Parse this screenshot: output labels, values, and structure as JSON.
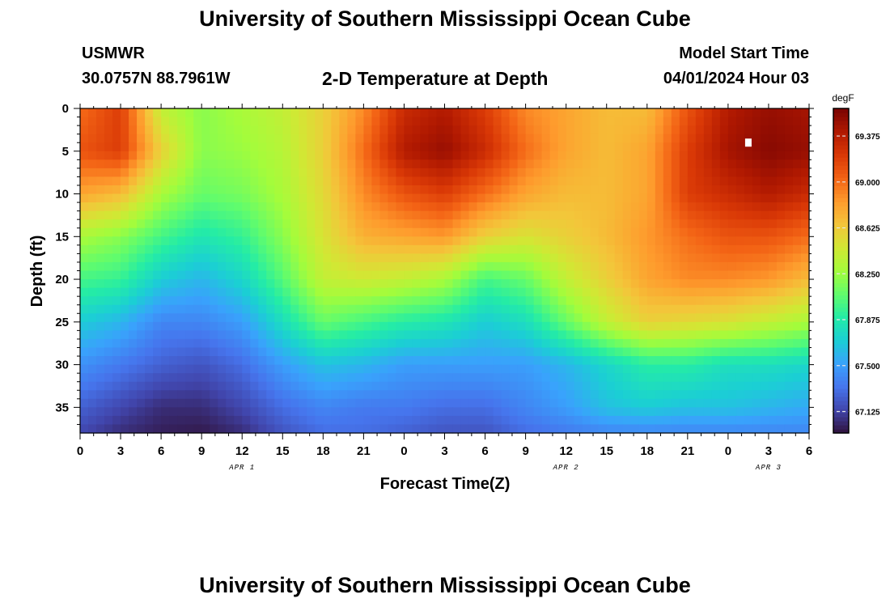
{
  "header": {
    "title": "University of Southern Mississippi Ocean Cube",
    "station": "USMWR",
    "coordinates": "30.0757N  88.7961W",
    "subtitle": "2-D Temperature at Depth",
    "model_start_label": "Model Start Time",
    "model_start_value": "04/01/2024 Hour 03"
  },
  "footer": {
    "title": "University of Southern Mississippi Ocean Cube"
  },
  "chart_data": {
    "type": "heatmap",
    "title": "2-D Temperature at Depth",
    "xlabel": "Forecast Time(Z)",
    "ylabel": "Depth (ft)",
    "xlim": [
      0,
      54
    ],
    "ylim": [
      38,
      0
    ],
    "x_ticks": [
      0,
      3,
      6,
      9,
      12,
      15,
      18,
      21,
      24,
      27,
      30,
      33,
      36,
      39,
      42,
      45,
      48,
      51,
      54
    ],
    "x_tick_labels": [
      "0",
      "3",
      "6",
      "9",
      "12",
      "15",
      "18",
      "21",
      "0",
      "3",
      "6",
      "9",
      "12",
      "15",
      "18",
      "21",
      "0",
      "3",
      "6"
    ],
    "date_labels": [
      {
        "text": "APR 1",
        "x": 12
      },
      {
        "text": "APR 2",
        "x": 36
      },
      {
        "text": "APR 3",
        "x": 51
      }
    ],
    "y_ticks": [
      0,
      5,
      10,
      15,
      20,
      25,
      30,
      35
    ],
    "colorbar": {
      "unit": "degF",
      "min": 66.95,
      "max": 69.6,
      "ticks": [
        67.125,
        67.5,
        67.875,
        68.25,
        68.625,
        69.0,
        69.375
      ],
      "tick_labels": [
        "67.125",
        "67.500",
        "67.875",
        "68.250",
        "68.625",
        "69.000",
        "69.375"
      ]
    },
    "colormap": [
      "#30123b",
      "#4145ab",
      "#4675ed",
      "#39a2fc",
      "#1bcfd4",
      "#24eca6",
      "#61fc6c",
      "#a4fc3b",
      "#d1e834",
      "#f3c63a",
      "#fe9b2d",
      "#f36315",
      "#d93806",
      "#b11901",
      "#7a0403"
    ],
    "grid_depth_ft": [
      0,
      5,
      10,
      15,
      20,
      25,
      30,
      35,
      38
    ],
    "grid_hours": [
      0,
      3,
      6,
      9,
      12,
      15,
      18,
      21,
      24,
      27,
      30,
      33,
      36,
      39,
      42,
      45,
      48,
      51,
      54
    ],
    "temperature_degF": [
      [
        69.0,
        69.2,
        68.4,
        68.2,
        68.3,
        68.4,
        68.6,
        68.9,
        69.3,
        69.4,
        69.2,
        68.9,
        68.8,
        68.7,
        68.7,
        69.1,
        69.4,
        69.5,
        69.45
      ],
      [
        69.1,
        69.2,
        68.6,
        68.2,
        68.25,
        68.35,
        68.6,
        69.0,
        69.4,
        69.5,
        69.3,
        69.0,
        68.8,
        68.7,
        68.8,
        69.2,
        69.45,
        69.55,
        69.5
      ],
      [
        68.8,
        68.7,
        68.3,
        68.1,
        68.15,
        68.3,
        68.55,
        68.9,
        69.1,
        69.2,
        69.0,
        68.8,
        68.7,
        68.7,
        68.8,
        69.2,
        69.3,
        69.4,
        69.3
      ],
      [
        68.3,
        68.2,
        68.0,
        67.85,
        67.95,
        68.2,
        68.5,
        68.75,
        68.8,
        68.85,
        68.6,
        68.5,
        68.6,
        68.7,
        68.85,
        69.0,
        69.1,
        69.1,
        69.0
      ],
      [
        68.0,
        67.95,
        67.7,
        67.6,
        67.75,
        68.05,
        68.4,
        68.45,
        68.4,
        68.3,
        68.0,
        68.1,
        68.4,
        68.6,
        68.8,
        68.9,
        68.9,
        68.85,
        68.7
      ],
      [
        67.7,
        67.6,
        67.4,
        67.4,
        67.5,
        67.8,
        68.1,
        68.0,
        67.9,
        67.85,
        67.7,
        67.8,
        68.1,
        68.4,
        68.6,
        68.55,
        68.5,
        68.4,
        68.3
      ],
      [
        67.45,
        67.35,
        67.25,
        67.2,
        67.3,
        67.5,
        67.65,
        67.6,
        67.5,
        67.5,
        67.5,
        67.5,
        67.6,
        67.75,
        67.9,
        67.9,
        67.8,
        67.8,
        67.75
      ],
      [
        67.25,
        67.15,
        67.05,
        67.05,
        67.15,
        67.3,
        67.4,
        67.35,
        67.35,
        67.3,
        67.3,
        67.4,
        67.5,
        67.65,
        67.7,
        67.65,
        67.65,
        67.6,
        67.55
      ],
      [
        67.15,
        67.05,
        67.0,
        66.98,
        67.05,
        67.2,
        67.3,
        67.3,
        67.25,
        67.2,
        67.2,
        67.3,
        67.35,
        67.4,
        67.4,
        67.4,
        67.4,
        67.4,
        67.4
      ]
    ],
    "marker": {
      "x": 49.5,
      "y": 4,
      "note": "white square marker"
    }
  }
}
